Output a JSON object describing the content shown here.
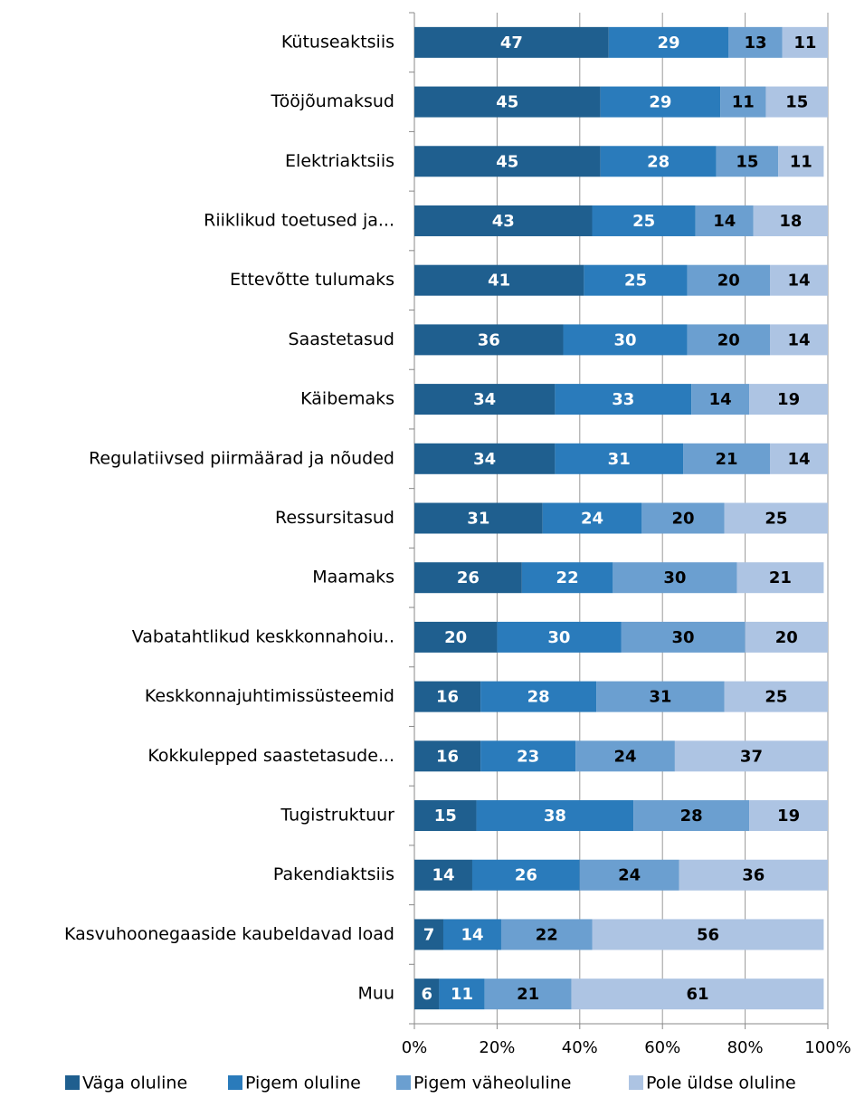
{
  "chart_data": {
    "type": "stacked_barh",
    "categories": [
      "Kütuseaktsiis",
      "Tööjõumaksud",
      "Elektriaktsiis",
      "Riiklikud toetused ja...",
      "Ettevõtte tulumaks",
      "Saastetasud",
      "Käibemaks",
      "Regulatiivsed piirmäärad ja nõuded",
      "Ressursitasud",
      "Maamaks",
      "Vabatahtlikud keskkonnahoiu..",
      "Keskkonnajuhtimissüsteemid",
      "Kokkulepped saastetasude...",
      "Tugistruktuur",
      "Pakendiaktsiis",
      "Kasvuhoonegaaside kaubeldavad load",
      "Muu"
    ],
    "series": [
      {
        "name": "Väga oluline",
        "color": "#1f5f8f",
        "values": [
          47,
          45,
          45,
          43,
          41,
          36,
          34,
          34,
          31,
          26,
          20,
          16,
          16,
          15,
          14,
          7,
          6
        ]
      },
      {
        "name": "Pigem oluline",
        "color": "#2a7bbb",
        "values": [
          29,
          29,
          28,
          25,
          25,
          30,
          33,
          31,
          24,
          22,
          30,
          28,
          23,
          38,
          26,
          14,
          11
        ]
      },
      {
        "name": "Pigem väheoluline",
        "color": "#6b9fd0",
        "values": [
          13,
          11,
          15,
          14,
          20,
          20,
          14,
          21,
          20,
          30,
          30,
          31,
          24,
          28,
          24,
          22,
          21
        ]
      },
      {
        "name": "Pole üldse oluline",
        "color": "#adc4e3",
        "values": [
          11,
          15,
          11,
          18,
          14,
          14,
          19,
          14,
          25,
          21,
          20,
          25,
          37,
          19,
          36,
          56,
          61
        ]
      }
    ],
    "xlim": [
      0,
      100
    ],
    "xticks": [
      {
        "value": 0,
        "label": "0%"
      },
      {
        "value": 20,
        "label": "20%"
      },
      {
        "value": 40,
        "label": "40%"
      },
      {
        "value": 60,
        "label": "60%"
      },
      {
        "value": 80,
        "label": "80%"
      },
      {
        "value": 100,
        "label": "100%"
      }
    ],
    "grid": true
  }
}
